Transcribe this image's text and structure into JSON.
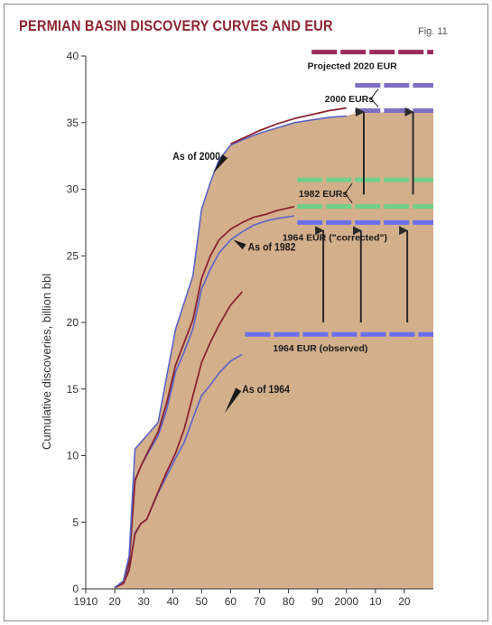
{
  "title": "PERMIAN BASIN DISCOVERY CURVES AND EUR",
  "figure_label": "Fig. 11",
  "colors": {
    "background_fill": "#d3af8c",
    "title": "#8b2330",
    "blue_curve": "#5a64c8",
    "red_curve": "#8b2330",
    "blue_bar": "#6a6ff0",
    "green_bar": "#6fd08a",
    "purple_bar": "#7f6fc0",
    "maroon_bar": "#9b2b5b",
    "arrow": "#2a2a2a"
  },
  "chart_data": {
    "type": "line",
    "title": "PERMIAN BASIN DISCOVERY CURVES AND EUR",
    "xlabel": "",
    "ylabel": "Cumulative discoveries, billion bbl",
    "xlim": [
      1910,
      2030
    ],
    "ylim": [
      0,
      40
    ],
    "x_ticks": [
      1910,
      1920,
      1930,
      1940,
      1950,
      1960,
      1970,
      1980,
      1990,
      2000,
      2010,
      2020
    ],
    "x_tick_labels": [
      "1910",
      "20",
      "30",
      "40",
      "50",
      "60",
      "70",
      "80",
      "90",
      "2000",
      "10",
      "20"
    ],
    "y_ticks": [
      0,
      5,
      10,
      15,
      20,
      25,
      30,
      35,
      40
    ],
    "y_tick_labels": [
      "0",
      "5",
      "10",
      "15",
      "20",
      "25",
      "30",
      "35",
      "40"
    ],
    "grid": false,
    "series": [
      {
        "style": "blue",
        "x": [
          1920,
          1923,
          1925,
          1927,
          1929,
          1931,
          1935,
          1938,
          1941,
          1944,
          1947,
          1950,
          1953,
          1956,
          1960,
          1964
        ],
        "y": [
          0.1,
          0.4,
          1.5,
          4.2,
          4.9,
          5.2,
          7.2,
          8.5,
          9.8,
          11.0,
          12.8,
          14.5,
          15.3,
          16.2,
          17.1,
          17.6
        ]
      },
      {
        "style": "red",
        "x": [
          1920,
          1923,
          1925,
          1927,
          1929,
          1931,
          1935,
          1938,
          1941,
          1944,
          1947,
          1950,
          1953,
          1956,
          1960,
          1964
        ],
        "y": [
          0.1,
          0.4,
          1.4,
          4.1,
          4.9,
          5.2,
          7.3,
          8.8,
          10.2,
          12.0,
          14.5,
          17.0,
          18.5,
          19.8,
          21.3,
          22.3
        ]
      },
      {
        "style": "blue",
        "x": [
          1920,
          1923,
          1925,
          1927,
          1929,
          1931,
          1935,
          1938,
          1941,
          1944,
          1947,
          1950,
          1953,
          1956,
          1960,
          1964,
          1968,
          1972,
          1976,
          1982
        ],
        "y": [
          0.1,
          0.5,
          2.0,
          8.2,
          9.2,
          10.0,
          11.5,
          13.5,
          16.3,
          17.8,
          19.5,
          22.5,
          24.0,
          25.2,
          26.2,
          26.8,
          27.3,
          27.6,
          27.8,
          28.0
        ]
      },
      {
        "style": "red",
        "x": [
          1920,
          1923,
          1925,
          1927,
          1929,
          1931,
          1935,
          1938,
          1941,
          1944,
          1947,
          1950,
          1953,
          1956,
          1960,
          1964,
          1968,
          1972,
          1976,
          1982
        ],
        "y": [
          0.1,
          0.5,
          2.0,
          8.1,
          9.2,
          10.1,
          11.8,
          14.0,
          16.8,
          18.5,
          20.2,
          23.3,
          25.0,
          26.2,
          27.0,
          27.5,
          27.9,
          28.1,
          28.4,
          28.7
        ]
      },
      {
        "style": "blue",
        "x": [
          1920,
          1923,
          1925,
          1927,
          1929,
          1931,
          1935,
          1938,
          1941,
          1944,
          1947,
          1950,
          1953,
          1956,
          1960,
          1964,
          1970,
          1976,
          1982,
          1988,
          1994,
          2000
        ],
        "y": [
          0.1,
          0.6,
          2.5,
          10.5,
          11.0,
          11.5,
          12.5,
          16.0,
          19.5,
          21.5,
          23.5,
          28.5,
          30.5,
          32.2,
          33.3,
          33.7,
          34.2,
          34.6,
          35.0,
          35.2,
          35.4,
          35.5
        ]
      },
      {
        "style": "red",
        "x": [
          1960,
          1964,
          1970,
          1976,
          1982,
          1988,
          1994,
          2000
        ],
        "y": [
          33.4,
          33.8,
          34.4,
          34.9,
          35.3,
          35.6,
          35.9,
          36.1
        ]
      }
    ],
    "eur_levels": [
      {
        "label": "Projected 2020 EUR",
        "value": 40.3,
        "x_range": [
          1988,
          2030
        ],
        "color": "maroon"
      },
      {
        "label": "2000 EURs",
        "values": [
          37.8,
          35.9
        ],
        "x_range": [
          2003,
          2030
        ],
        "color": "purple"
      },
      {
        "label": "1982 EURs",
        "values": [
          30.7,
          28.7
        ],
        "x_range": [
          1983,
          2030
        ],
        "color": "green"
      },
      {
        "label": "1964 EUR (\"corrected\")",
        "value": 27.5,
        "x_range": [
          1983,
          2030
        ],
        "color": "blue"
      },
      {
        "label": "1964 EUR (observed)",
        "value": 19.1,
        "x_range": [
          1965,
          2030
        ],
        "color": "blue"
      }
    ],
    "arrows": [
      {
        "x": 1992,
        "from": 20.0,
        "to": 26.9
      },
      {
        "x": 2005,
        "from": 20.0,
        "to": 26.9
      },
      {
        "x": 2021,
        "from": 20.0,
        "to": 26.9
      },
      {
        "x": 2006,
        "from": 29.6,
        "to": 35.8
      },
      {
        "x": 2023,
        "from": 29.6,
        "to": 35.8
      }
    ],
    "annotations": [
      {
        "text": "As of 2000",
        "text_x": 1940,
        "text_y": 32.2,
        "point_x": 1954,
        "point_y": 31.2
      },
      {
        "text": "As of 1982",
        "text_x": 1966,
        "text_y": 25.4,
        "point_x": 1961,
        "point_y": 26.2
      },
      {
        "text": "As of 1964",
        "text_x": 1964,
        "text_y": 14.7,
        "point_x": 1958,
        "point_y": 13.2
      }
    ]
  }
}
